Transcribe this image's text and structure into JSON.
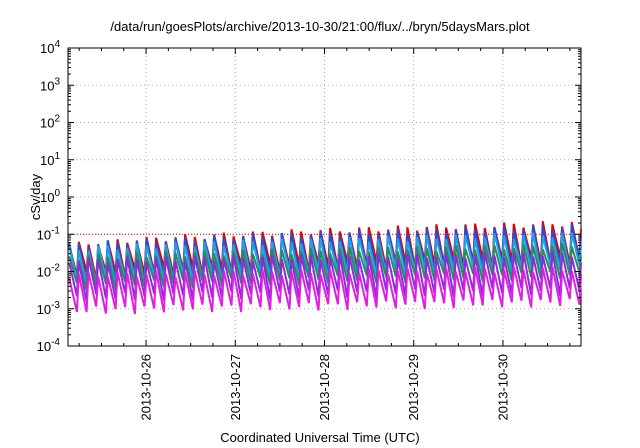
{
  "chart_data": {
    "type": "line",
    "title": "/data/run/goesPlots/archive/2013-10-30/21:00/flux/../bryn/5daysMars.plot",
    "xlabel": "Coordinated Universal Time (UTC)",
    "ylabel": "cSv/day",
    "y_scale": "log",
    "ylim": [
      0.0001,
      10000
    ],
    "y_ticks": [
      {
        "base": "10",
        "exp": "4"
      },
      {
        "base": "10",
        "exp": "3"
      },
      {
        "base": "10",
        "exp": "2"
      },
      {
        "base": "10",
        "exp": "1"
      },
      {
        "base": "10",
        "exp": "0"
      },
      {
        "base": "10",
        "exp": "-1"
      },
      {
        "base": "10",
        "exp": "-2"
      },
      {
        "base": "10",
        "exp": "-3"
      },
      {
        "base": "10",
        "exp": "-4"
      }
    ],
    "x_range": [
      "2013-10-25 03:00",
      "2013-10-30 21:00"
    ],
    "x_ticks": [
      "2013-10-26",
      "2013-10-27",
      "2013-10-28",
      "2013-10-29",
      "2013-10-30"
    ],
    "grid": true,
    "reference_line": 0.1,
    "cycle_hours": 2.6,
    "series": [
      {
        "color": "#e60000",
        "peak": [
          0.05,
          0.2
        ],
        "trough": [
          0.008,
          0.02
        ]
      },
      {
        "color": "#2a4bd7",
        "peak": [
          0.05,
          0.16
        ],
        "trough": [
          0.005,
          0.015
        ]
      },
      {
        "color": "#1fa3e0",
        "peak": [
          0.04,
          0.1
        ],
        "trough": [
          0.005,
          0.012
        ]
      },
      {
        "color": "#2e8b57",
        "peak": [
          0.025,
          0.05
        ],
        "trough": [
          0.004,
          0.008
        ]
      },
      {
        "color": "#8a2be2",
        "peak": [
          0.02,
          0.03
        ],
        "trough": [
          0.002,
          0.003
        ]
      },
      {
        "color": "#e020e0",
        "peak": [
          0.008,
          0.012
        ],
        "trough": [
          0.0009,
          0.0015
        ]
      }
    ]
  }
}
